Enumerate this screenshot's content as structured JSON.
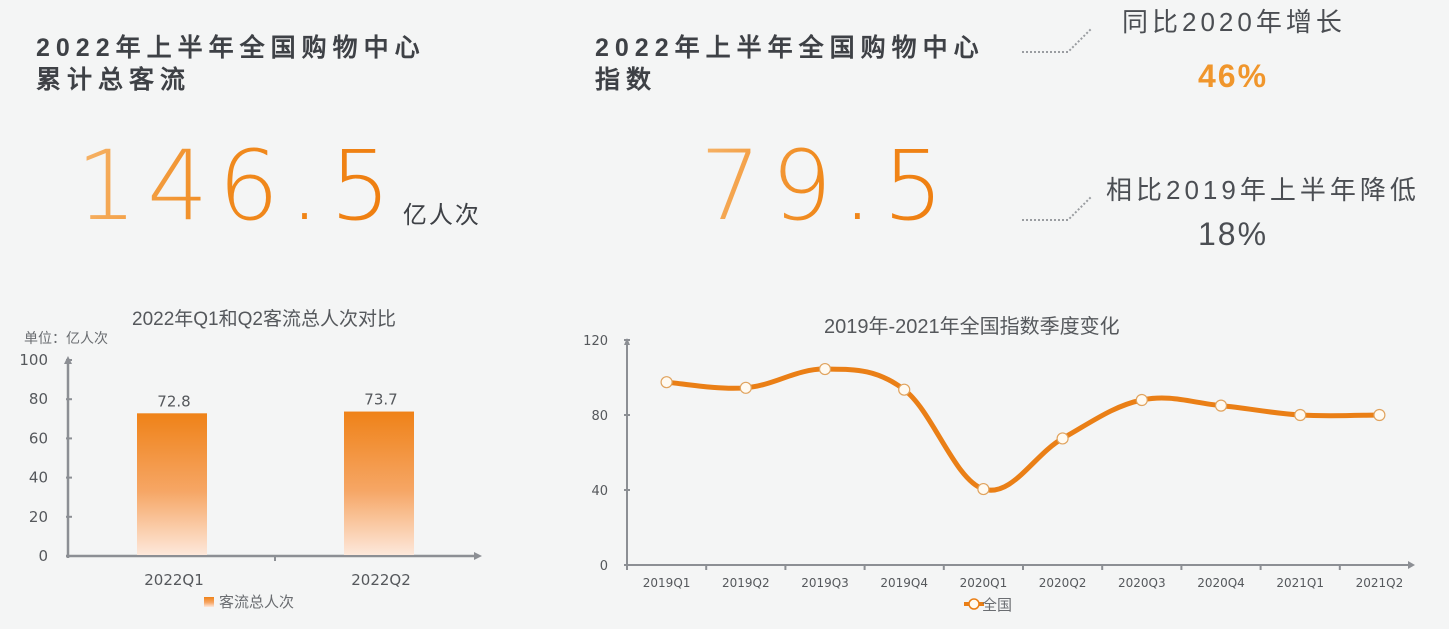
{
  "panel_left": {
    "title_line1": "2022年上半年全国购物中心",
    "title_line2": "累计总客流",
    "value": "146.5",
    "unit": "亿人次"
  },
  "panel_right": {
    "title_line1": "2022年上半年全国购物中心",
    "title_line2": "指数",
    "value": "79.5",
    "callout_top": {
      "label": "同比2020年增长",
      "value": "46%",
      "color": "#f0962c"
    },
    "callout_bottom": {
      "label": "相比2019年上半年降低",
      "value": "18%",
      "color": "#4b4e53"
    }
  },
  "colors": {
    "accent": "#ef8218",
    "axis": "#8c8f94",
    "text": "#3e4146"
  },
  "chart_data": [
    {
      "type": "bar",
      "title": "2022年Q1和Q2客流总人次对比",
      "ylabel": "单位：亿人次",
      "xlabel": "",
      "categories": [
        "2022Q1",
        "2022Q2"
      ],
      "series": [
        {
          "name": "客流总人次",
          "values": [
            72.8,
            73.7
          ]
        }
      ],
      "data_labels": [
        "72.8",
        "73.7"
      ],
      "ylim": [
        0,
        100
      ],
      "yticks": [
        "0",
        "20",
        "40",
        "60",
        "80",
        "100"
      ],
      "legend": "客流总人次",
      "legend_position": "bottom",
      "grid": false
    },
    {
      "type": "line",
      "title": "2019年-2021年全国指数季度变化",
      "xlabel": "",
      "ylabel": "",
      "categories": [
        "2019Q1",
        "2019Q2",
        "2019Q3",
        "2019Q4",
        "2020Q1",
        "2020Q2",
        "2020Q3",
        "2020Q4",
        "2021Q1",
        "2021Q2"
      ],
      "series": [
        {
          "name": "全国",
          "values": [
            97.5,
            94.5,
            104.5,
            93.5,
            40.5,
            67.5,
            88,
            85,
            80,
            80
          ]
        }
      ],
      "ylim": [
        0,
        120
      ],
      "yticks": [
        "0",
        "40",
        "80",
        "120"
      ],
      "legend": "全国",
      "legend_position": "bottom",
      "grid": false
    }
  ]
}
